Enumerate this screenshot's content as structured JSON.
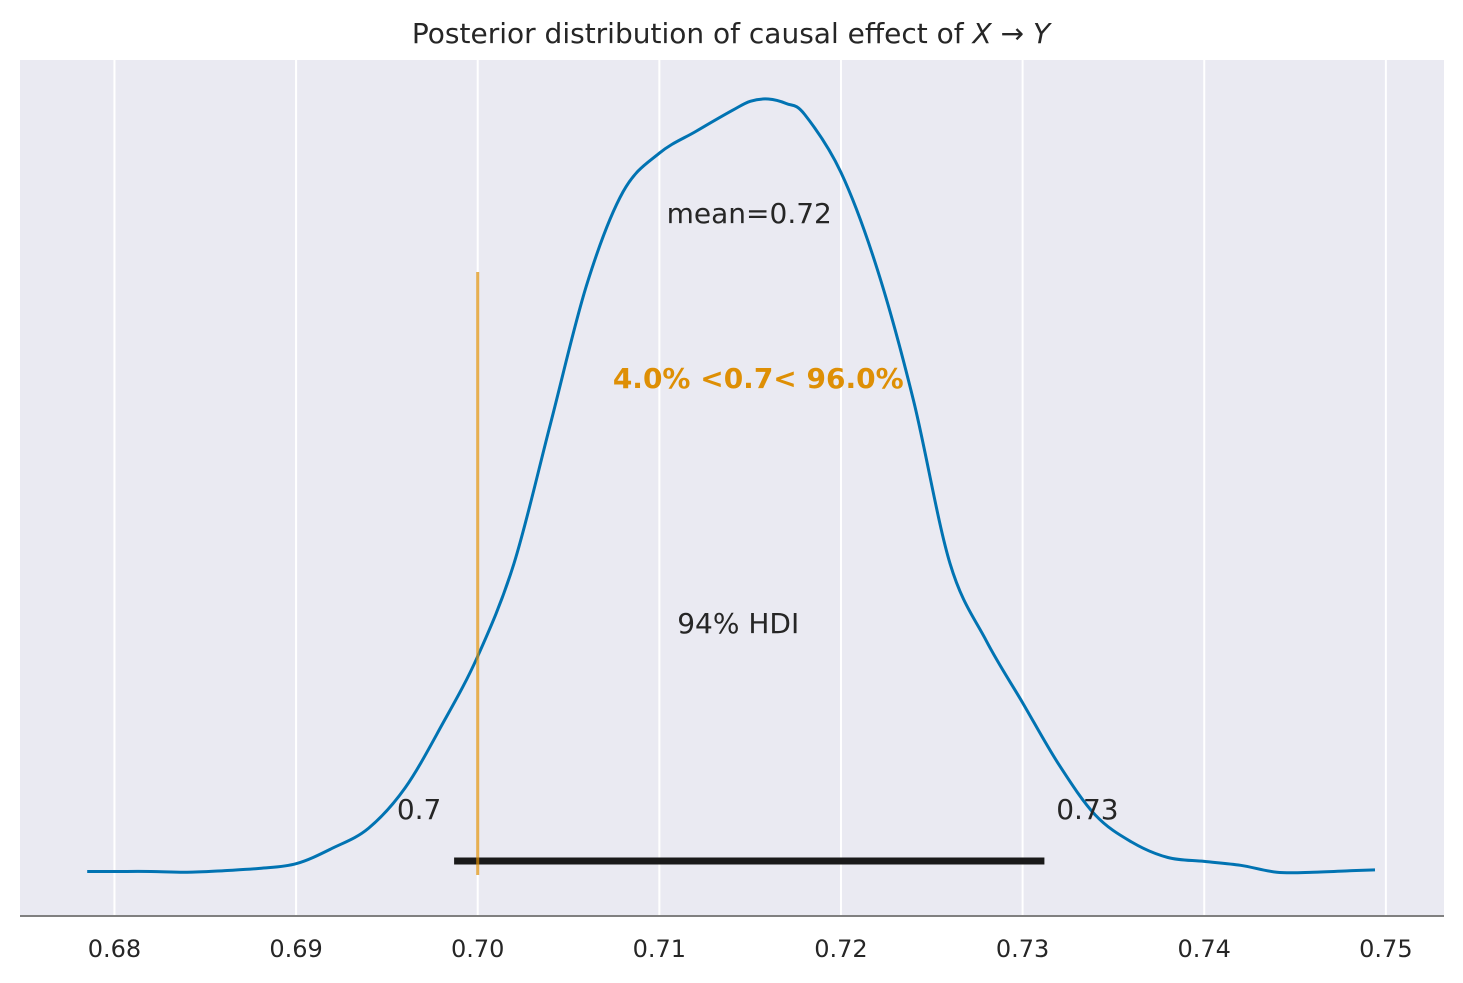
{
  "chart_data": {
    "type": "area",
    "title_text": "Posterior distribution of causal effect of ",
    "title_math": "X → Y",
    "xlim": [
      0.6748,
      0.7532
    ],
    "ylim": [
      0,
      1
    ],
    "grid": true,
    "colors": {
      "background": "#eaeaf2",
      "density": "#0173b2",
      "reference": "#de8f05",
      "hdi": "#1a1a1a",
      "grid": "#ffffff",
      "axis": "#808080"
    },
    "x_ticks": [
      0.68,
      0.69,
      0.7,
      0.71,
      0.72,
      0.73,
      0.74,
      0.75
    ],
    "x_tick_labels": [
      "0.68",
      "0.69",
      "0.70",
      "0.71",
      "0.72",
      "0.73",
      "0.74",
      "0.75"
    ],
    "density": {
      "x": [
        0.6785,
        0.68,
        0.682,
        0.684,
        0.686,
        0.688,
        0.69,
        0.692,
        0.694,
        0.696,
        0.698,
        0.7,
        0.702,
        0.704,
        0.706,
        0.708,
        0.71,
        0.712,
        0.714,
        0.715,
        0.716,
        0.717,
        0.718,
        0.72,
        0.722,
        0.724,
        0.726,
        0.728,
        0.73,
        0.732,
        0.734,
        0.736,
        0.738,
        0.74,
        0.742,
        0.744,
        0.746,
        0.748,
        0.7494
      ],
      "y": [
        0.002,
        0.002,
        0.002,
        0.001,
        0.003,
        0.006,
        0.012,
        0.032,
        0.058,
        0.11,
        0.19,
        0.28,
        0.4,
        0.58,
        0.76,
        0.88,
        0.93,
        0.958,
        0.985,
        0.997,
        1.0,
        0.994,
        0.98,
        0.905,
        0.78,
        0.61,
        0.4,
        0.3,
        0.22,
        0.14,
        0.075,
        0.04,
        0.02,
        0.015,
        0.01,
        0.001,
        0.001,
        0.003,
        0.004
      ]
    },
    "mean_label": "mean=0.72",
    "reference": {
      "value": 0.7,
      "label": "4.0% <0.7< 96.0%"
    },
    "hdi": {
      "label": "94% HDI",
      "lower": 0.6987,
      "upper": 0.7312,
      "lower_label": "0.7",
      "upper_label": "0.73"
    }
  }
}
